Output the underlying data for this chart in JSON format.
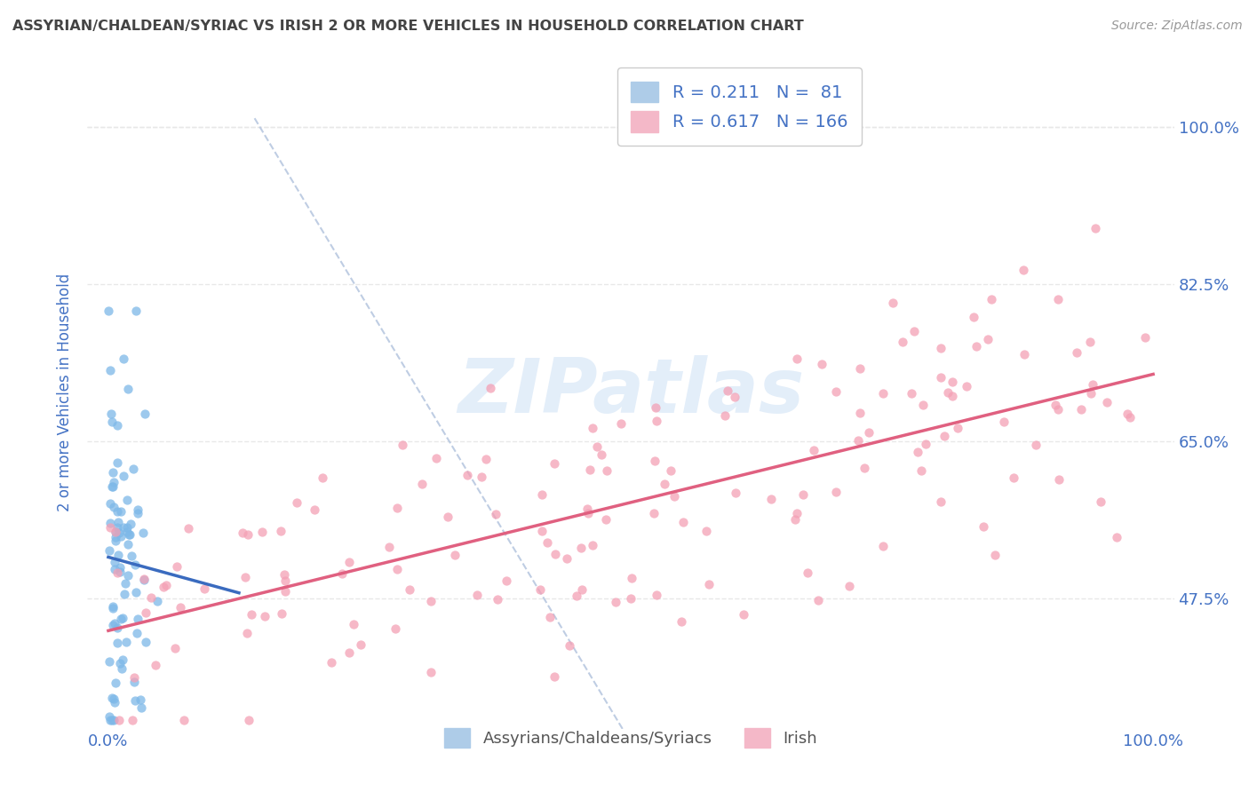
{
  "title": "ASSYRIAN/CHALDEAN/SYRIAC VS IRISH 2 OR MORE VEHICLES IN HOUSEHOLD CORRELATION CHART",
  "source_text": "Source: ZipAtlas.com",
  "ylabel": "2 or more Vehicles in Household",
  "xlim": [
    -0.02,
    1.02
  ],
  "ylim": [
    0.33,
    1.08
  ],
  "xtick_positions": [
    0.0,
    1.0
  ],
  "xtick_labels": [
    "0.0%",
    "100.0%"
  ],
  "ytick_values": [
    0.475,
    0.65,
    0.825,
    1.0
  ],
  "ytick_labels": [
    "47.5%",
    "65.0%",
    "82.5%",
    "100.0%"
  ],
  "blue_scatter_color": "#7db8e8",
  "pink_scatter_color": "#f4a0b5",
  "blue_line_color": "#3a6bbf",
  "pink_line_color": "#e06080",
  "diag_line_color": "#b8c8e0",
  "tick_label_color": "#4472c4",
  "ylabel_color": "#4472c4",
  "title_color": "#444444",
  "background_color": "#ffffff",
  "grid_color": "#e8e8e8",
  "watermark": "ZIPatlas",
  "watermark_color": "#cce0f5",
  "N_blue": 81,
  "N_pink": 166,
  "blue_seed": 42,
  "pink_seed": 7
}
